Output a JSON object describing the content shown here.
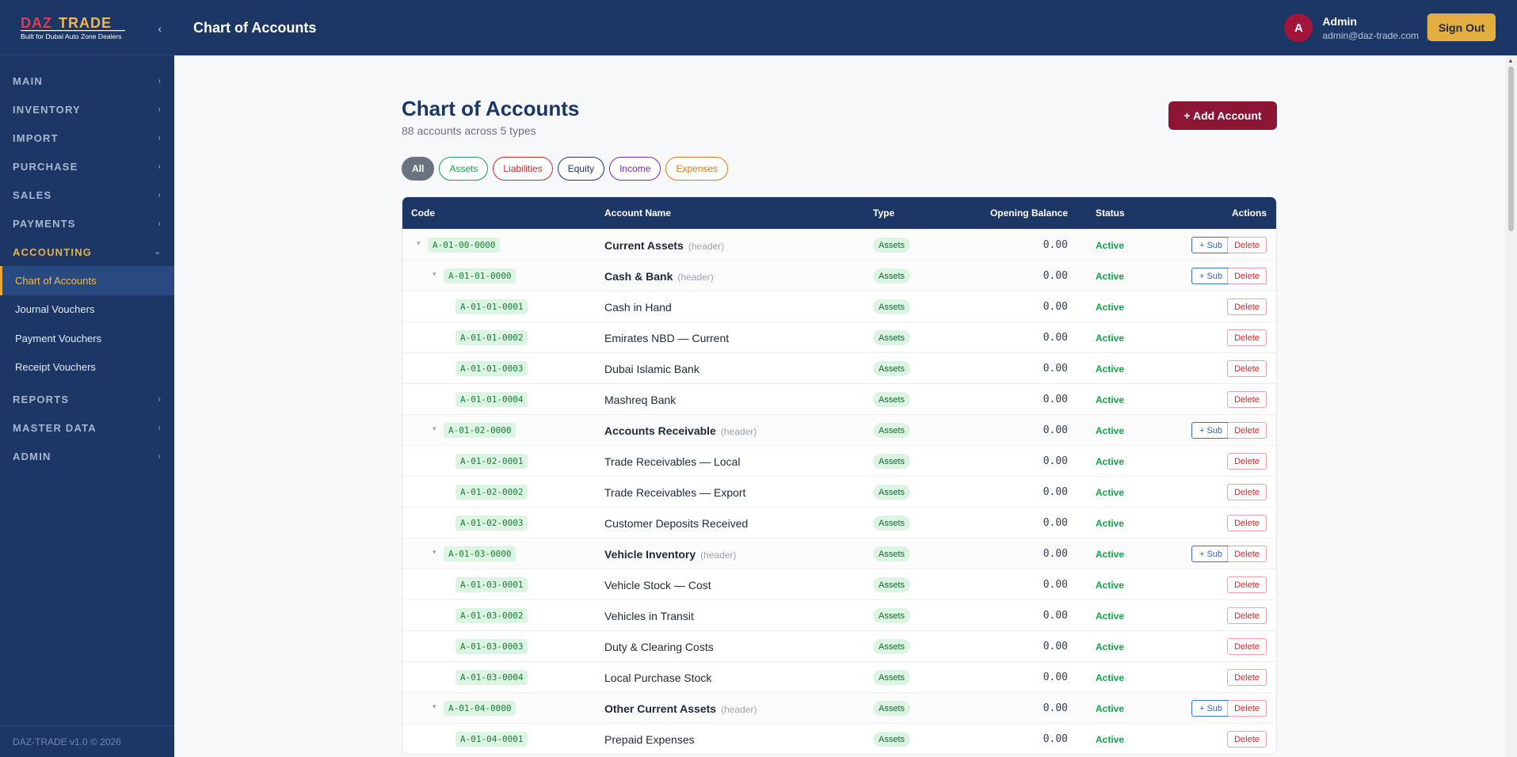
{
  "brand": {
    "logo_text": "DAZ TRADE",
    "tagline": "Built for Dubai Auto Zone Dealers",
    "collapse_glyph": "‹"
  },
  "sidebar": {
    "groups": [
      {
        "label": "MAIN",
        "chevron": "›"
      },
      {
        "label": "INVENTORY",
        "chevron": "›"
      },
      {
        "label": "IMPORT",
        "chevron": "›"
      },
      {
        "label": "PURCHASE",
        "chevron": "›"
      },
      {
        "label": "SALES",
        "chevron": "›"
      },
      {
        "label": "PAYMENTS",
        "chevron": "›"
      },
      {
        "label": "ACCOUNTING",
        "chevron": "⌄",
        "active": true
      },
      {
        "label": "REPORTS",
        "chevron": "›"
      },
      {
        "label": "MASTER DATA",
        "chevron": "›"
      },
      {
        "label": "ADMIN",
        "chevron": "›"
      }
    ],
    "accounting_items": [
      "Chart of Accounts",
      "Journal Vouchers",
      "Payment Vouchers",
      "Receipt Vouchers"
    ],
    "footer": "DAZ-TRADE v1.0 © 2026"
  },
  "topbar": {
    "title": "Chart of Accounts",
    "user": {
      "initial": "A",
      "name": "Admin",
      "email": "admin@daz-trade.com"
    },
    "signout": "Sign Out"
  },
  "page": {
    "title": "Chart of Accounts",
    "subtitle": "88 accounts across 5 types",
    "add_button": "+ Add Account"
  },
  "filters": [
    {
      "label": "All",
      "color": "#6b7280"
    },
    {
      "label": "Assets",
      "color": "#16a34a"
    },
    {
      "label": "Liabilities",
      "color": "#dc2626"
    },
    {
      "label": "Equity",
      "color": "#1c3766"
    },
    {
      "label": "Income",
      "color": "#7e22ce"
    },
    {
      "label": "Expenses",
      "color": "#e07b12"
    }
  ],
  "table": {
    "columns": {
      "code": "Code",
      "name": "Account Name",
      "type": "Type",
      "balance": "Opening Balance",
      "status": "Status",
      "actions": "Actions"
    },
    "header_tag": "(header)",
    "sub_label": "+ Sub",
    "delete_label": "Delete",
    "toggle_glyph": "▾",
    "rows": [
      {
        "level": 0,
        "code": "A-01-00-0000",
        "name": "Current Assets",
        "is_header": true,
        "type": "Assets",
        "balance": "0.00",
        "status": "Active"
      },
      {
        "level": 1,
        "code": "A-01-01-0000",
        "name": "Cash & Bank",
        "is_header": true,
        "type": "Assets",
        "balance": "0.00",
        "status": "Active"
      },
      {
        "level": 2,
        "code": "A-01-01-0001",
        "name": "Cash in Hand",
        "is_header": false,
        "type": "Assets",
        "balance": "0.00",
        "status": "Active"
      },
      {
        "level": 2,
        "code": "A-01-01-0002",
        "name": "Emirates NBD — Current",
        "is_header": false,
        "type": "Assets",
        "balance": "0.00",
        "status": "Active"
      },
      {
        "level": 2,
        "code": "A-01-01-0003",
        "name": "Dubai Islamic Bank",
        "is_header": false,
        "type": "Assets",
        "balance": "0.00",
        "status": "Active"
      },
      {
        "level": 2,
        "code": "A-01-01-0004",
        "name": "Mashreq Bank",
        "is_header": false,
        "type": "Assets",
        "balance": "0.00",
        "status": "Active"
      },
      {
        "level": 1,
        "code": "A-01-02-0000",
        "name": "Accounts Receivable",
        "is_header": true,
        "type": "Assets",
        "balance": "0.00",
        "status": "Active"
      },
      {
        "level": 2,
        "code": "A-01-02-0001",
        "name": "Trade Receivables — Local",
        "is_header": false,
        "type": "Assets",
        "balance": "0.00",
        "status": "Active"
      },
      {
        "level": 2,
        "code": "A-01-02-0002",
        "name": "Trade Receivables — Export",
        "is_header": false,
        "type": "Assets",
        "balance": "0.00",
        "status": "Active"
      },
      {
        "level": 2,
        "code": "A-01-02-0003",
        "name": "Customer Deposits Received",
        "is_header": false,
        "type": "Assets",
        "balance": "0.00",
        "status": "Active"
      },
      {
        "level": 1,
        "code": "A-01-03-0000",
        "name": "Vehicle Inventory",
        "is_header": true,
        "type": "Assets",
        "balance": "0.00",
        "status": "Active"
      },
      {
        "level": 2,
        "code": "A-01-03-0001",
        "name": "Vehicle Stock — Cost",
        "is_header": false,
        "type": "Assets",
        "balance": "0.00",
        "status": "Active"
      },
      {
        "level": 2,
        "code": "A-01-03-0002",
        "name": "Vehicles in Transit",
        "is_header": false,
        "type": "Assets",
        "balance": "0.00",
        "status": "Active"
      },
      {
        "level": 2,
        "code": "A-01-03-0003",
        "name": "Duty & Clearing Costs",
        "is_header": false,
        "type": "Assets",
        "balance": "0.00",
        "status": "Active"
      },
      {
        "level": 2,
        "code": "A-01-03-0004",
        "name": "Local Purchase Stock",
        "is_header": false,
        "type": "Assets",
        "balance": "0.00",
        "status": "Active"
      },
      {
        "level": 1,
        "code": "A-01-04-0000",
        "name": "Other Current Assets",
        "is_header": true,
        "type": "Assets",
        "balance": "0.00",
        "status": "Active"
      },
      {
        "level": 2,
        "code": "A-01-04-0001",
        "name": "Prepaid Expenses",
        "is_header": false,
        "type": "Assets",
        "balance": "0.00",
        "status": "Active"
      }
    ]
  }
}
